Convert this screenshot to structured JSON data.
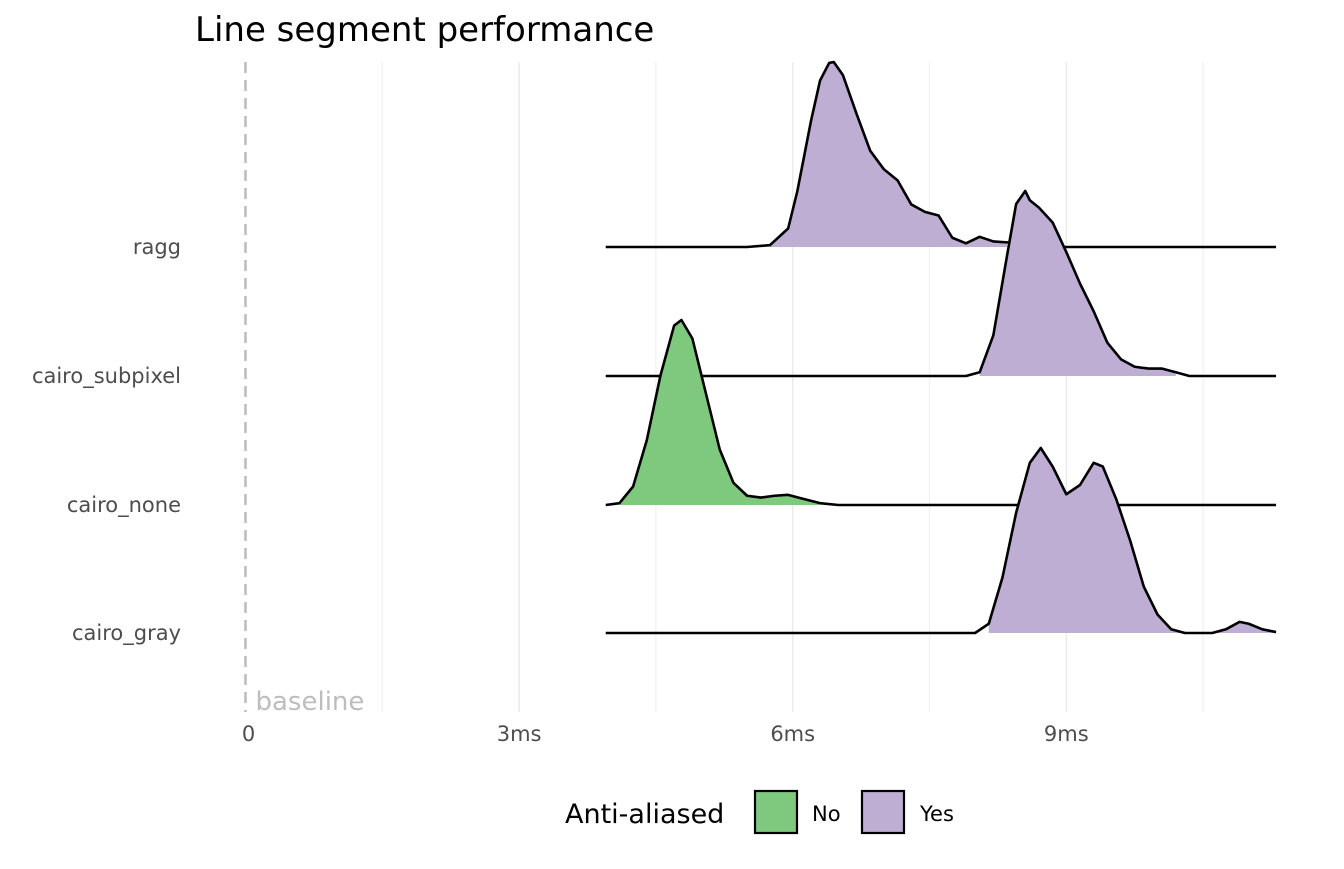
{
  "chart_data": {
    "type": "ridgeline",
    "title": "Line segment performance",
    "xlabel": "",
    "ylabel": "",
    "x_unit": "ms",
    "xlim": [
      0,
      11.3
    ],
    "x_ticks": [
      {
        "value": 0,
        "label": "0"
      },
      {
        "value": 3,
        "label": "3ms"
      },
      {
        "value": 6,
        "label": "6ms"
      },
      {
        "value": 9,
        "label": "9ms"
      }
    ],
    "x_minor_gridlines": [
      1.5,
      4.5,
      7.5,
      10.5
    ],
    "grid": true,
    "reference_line": {
      "x": 0,
      "label": "baseline",
      "style": "dashed",
      "color": "#bdbdbd"
    },
    "categories": [
      "ragg",
      "cairo_subpixel",
      "cairo_none",
      "cairo_gray"
    ],
    "legend": {
      "title": "Anti-aliased",
      "position": "bottom",
      "entries": [
        {
          "label": "No",
          "color": "#7fc97f"
        },
        {
          "label": "Yes",
          "color": "#beaed4"
        }
      ]
    },
    "density_x_range": [
      3.95,
      11.3
    ],
    "series": [
      {
        "name": "ragg",
        "anti_aliased": "Yes",
        "fill": "#beaed4",
        "fill_range": [
          5.75,
          8.35
        ],
        "points": [
          [
            3.95,
            0
          ],
          [
            5.0,
            0
          ],
          [
            5.5,
            0
          ],
          [
            5.75,
            0.01
          ],
          [
            5.95,
            0.1
          ],
          [
            6.05,
            0.3
          ],
          [
            6.2,
            0.68
          ],
          [
            6.3,
            0.9
          ],
          [
            6.4,
            0.995
          ],
          [
            6.45,
            1.0
          ],
          [
            6.55,
            0.93
          ],
          [
            6.7,
            0.72
          ],
          [
            6.85,
            0.52
          ],
          [
            7.0,
            0.42
          ],
          [
            7.15,
            0.36
          ],
          [
            7.3,
            0.23
          ],
          [
            7.45,
            0.19
          ],
          [
            7.6,
            0.17
          ],
          [
            7.75,
            0.05
          ],
          [
            7.9,
            0.02
          ],
          [
            8.05,
            0.055
          ],
          [
            8.2,
            0.03
          ],
          [
            8.35,
            0.025
          ],
          [
            8.5,
            0.02
          ],
          [
            8.7,
            0.01
          ],
          [
            9.0,
            0
          ],
          [
            11.3,
            0
          ]
        ]
      },
      {
        "name": "cairo_subpixel",
        "anti_aliased": "Yes",
        "fill": "#beaed4",
        "fill_range": [
          8.0,
          10.3
        ],
        "points": [
          [
            3.95,
            0
          ],
          [
            7.9,
            0
          ],
          [
            8.05,
            0.02
          ],
          [
            8.2,
            0.22
          ],
          [
            8.35,
            0.65
          ],
          [
            8.45,
            0.93
          ],
          [
            8.55,
            1.0
          ],
          [
            8.6,
            0.95
          ],
          [
            8.7,
            0.91
          ],
          [
            8.85,
            0.83
          ],
          [
            9.0,
            0.67
          ],
          [
            9.15,
            0.5
          ],
          [
            9.3,
            0.35
          ],
          [
            9.45,
            0.18
          ],
          [
            9.6,
            0.09
          ],
          [
            9.75,
            0.05
          ],
          [
            9.9,
            0.04
          ],
          [
            10.05,
            0.04
          ],
          [
            10.2,
            0.02
          ],
          [
            10.35,
            0
          ],
          [
            11.3,
            0
          ]
        ]
      },
      {
        "name": "cairo_none",
        "anti_aliased": "No",
        "fill": "#7fc97f",
        "fill_range": [
          4.1,
          6.3
        ],
        "points": [
          [
            3.95,
            0
          ],
          [
            4.1,
            0.01
          ],
          [
            4.25,
            0.1
          ],
          [
            4.4,
            0.35
          ],
          [
            4.55,
            0.7
          ],
          [
            4.7,
            0.97
          ],
          [
            4.78,
            1.0
          ],
          [
            4.9,
            0.9
          ],
          [
            5.05,
            0.6
          ],
          [
            5.2,
            0.3
          ],
          [
            5.35,
            0.12
          ],
          [
            5.5,
            0.05
          ],
          [
            5.65,
            0.04
          ],
          [
            5.8,
            0.05
          ],
          [
            5.95,
            0.055
          ],
          [
            6.1,
            0.035
          ],
          [
            6.3,
            0.01
          ],
          [
            6.5,
            0
          ],
          [
            11.3,
            0
          ]
        ]
      },
      {
        "name": "cairo_gray",
        "anti_aliased": "Yes",
        "fill": "#beaed4",
        "fill_range": [
          8.1,
          11.3
        ],
        "points": [
          [
            3.95,
            0
          ],
          [
            8.0,
            0
          ],
          [
            8.15,
            0.05
          ],
          [
            8.3,
            0.3
          ],
          [
            8.45,
            0.65
          ],
          [
            8.6,
            0.92
          ],
          [
            8.72,
            1.0
          ],
          [
            8.85,
            0.9
          ],
          [
            9.0,
            0.75
          ],
          [
            9.15,
            0.8
          ],
          [
            9.3,
            0.92
          ],
          [
            9.4,
            0.9
          ],
          [
            9.55,
            0.72
          ],
          [
            9.7,
            0.5
          ],
          [
            9.85,
            0.25
          ],
          [
            10.0,
            0.1
          ],
          [
            10.15,
            0.02
          ],
          [
            10.3,
            0
          ],
          [
            10.6,
            0
          ],
          [
            10.75,
            0.02
          ],
          [
            10.9,
            0.06
          ],
          [
            11.0,
            0.05
          ],
          [
            11.15,
            0.02
          ],
          [
            11.3,
            0.005
          ]
        ]
      }
    ]
  }
}
